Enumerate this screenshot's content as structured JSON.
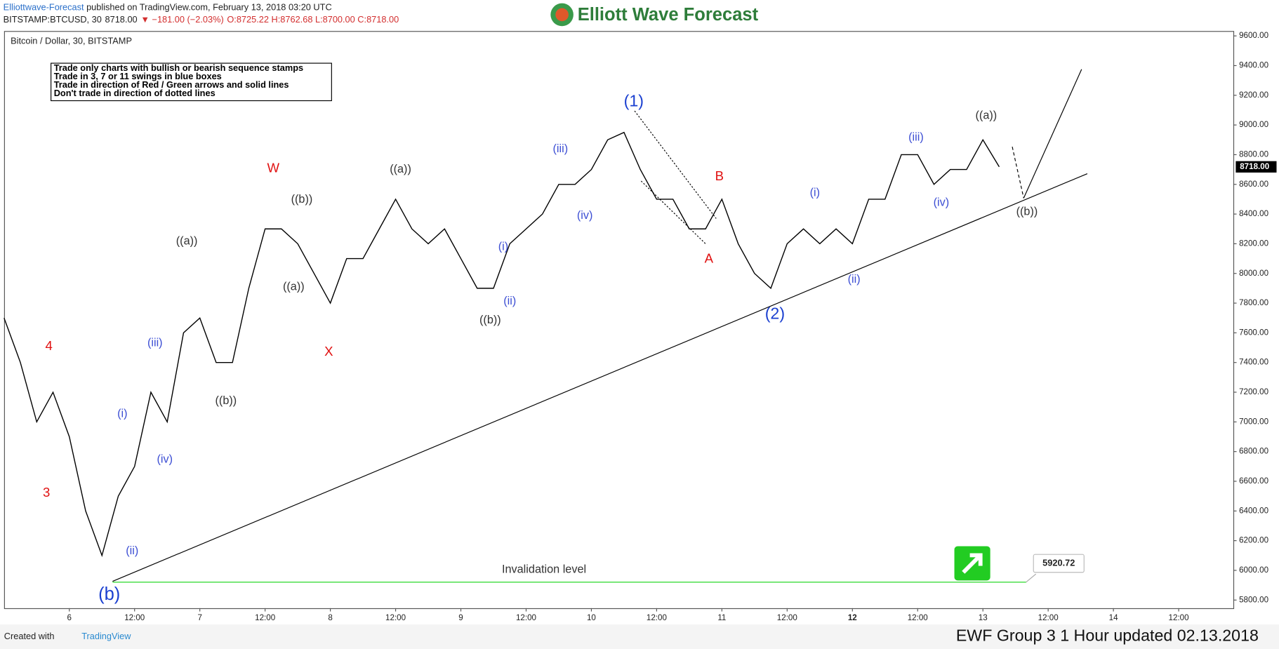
{
  "header": {
    "author": "Elliottwave-Forecast",
    "published": "published on TradingView.com, February 13, 2018 03:20 UTC",
    "symbol": "BITSTAMP:BTCUSD, 30",
    "price": "8718.00",
    "change": "▼ −181.00 (−2.03%)",
    "ohlc": "O:8725.22 H:8762.68 L:8700.00 C:8718.00",
    "logo": "Elliott Wave Forecast"
  },
  "notes": [
    "Trade only charts with bullish or bearish sequence stamps",
    "Trade in 3, 7 or 11 swings in blue boxes",
    "Trade in direction of Red / Green arrows and solid lines",
    "Don't trade in direction of dotted lines"
  ],
  "footer": {
    "created": "Created with",
    "brand": "TradingView",
    "caption": "EWF Group 3 1 Hour updated 02.13.2018"
  },
  "chart_data": {
    "type": "line",
    "title": "Bitcoin / Dollar, 30, BITSTAMP",
    "color": "#000000",
    "categories": [
      null,
      null,
      null,
      null,
      "6",
      null,
      null,
      null,
      "12:00",
      null,
      null,
      null,
      "7",
      null,
      null,
      null,
      "12:00",
      null,
      null,
      null,
      "8",
      null,
      null,
      null,
      "12:00",
      null,
      null,
      null,
      "9",
      null,
      null,
      null,
      "12:00",
      null,
      null,
      null,
      "10",
      null,
      null,
      null,
      "12:00",
      null,
      null,
      null,
      "11",
      null,
      null,
      null,
      "12:00",
      null,
      null,
      null,
      "12",
      null,
      null,
      null,
      "12:00",
      null,
      null,
      null,
      "13",
      null,
      null,
      null,
      "12:00",
      null,
      null,
      null,
      "14",
      null,
      null,
      null,
      "12:00",
      null,
      null
    ],
    "values": [
      7700,
      7400,
      7000,
      7200,
      6900,
      6400,
      6100,
      6500,
      6700,
      7200,
      7000,
      7600,
      7700,
      7400,
      7400,
      7900,
      8300,
      8300,
      8200,
      8000,
      7800,
      8100,
      8100,
      8300,
      8500,
      8300,
      8200,
      8300,
      8100,
      7900,
      7900,
      8200,
      8300,
      8400,
      8600,
      8600,
      8700,
      8900,
      8950,
      8700,
      8500,
      8500,
      8300,
      8300,
      8500,
      8200,
      8000,
      7900,
      8200,
      8300,
      8200,
      8300,
      8200,
      8500,
      8500,
      8800,
      8800,
      8600,
      8700,
      8700,
      8900,
      8718,
      null,
      null,
      null,
      null,
      null,
      null,
      null,
      null,
      null,
      null,
      null,
      null,
      null
    ],
    "ylim": [
      5745,
      9633
    ],
    "yticks": [
      {
        "value": 5800,
        "label": "5800.00"
      },
      {
        "value": 6000,
        "label": "6000.00"
      },
      {
        "value": 6200,
        "label": "6200.00"
      },
      {
        "value": 6400,
        "label": "6400.00"
      },
      {
        "value": 6600,
        "label": "6600.00"
      },
      {
        "value": 6800,
        "label": "6800.00"
      },
      {
        "value": 7000,
        "label": "7000.00"
      },
      {
        "value": 7200,
        "label": "7200.00"
      },
      {
        "value": 7400,
        "label": "7400.00"
      },
      {
        "value": 7600,
        "label": "7600.00"
      },
      {
        "value": 7800,
        "label": "7800.00"
      },
      {
        "value": 8000,
        "label": "8000.00"
      },
      {
        "value": 8200,
        "label": "8200.00"
      },
      {
        "value": 8400,
        "label": "8400.00"
      },
      {
        "value": 8600,
        "label": "8600.00"
      },
      {
        "value": 8800,
        "label": "8800.00"
      },
      {
        "value": 9000,
        "label": "9000.00"
      },
      {
        "value": 9200,
        "label": "9200.00"
      },
      {
        "value": 9400,
        "label": "9400.00"
      },
      {
        "value": 9600,
        "label": "9600.00"
      }
    ],
    "last_price": {
      "value": 8718,
      "label": "8718.00"
    },
    "invalidation": {
      "text": "Invalidation level",
      "value": 5920.72,
      "label": "5920.72"
    },
    "annotations": [
      "4",
      "3",
      "(b)",
      "(i)",
      "(ii)",
      "(iii)",
      "(iv)",
      "((a))",
      "((b))",
      "W",
      "((b))",
      "((a))",
      "X",
      "((a))",
      "((b))",
      "(i)",
      "(ii)",
      "(iii)",
      "(iv)",
      "(1)",
      "B",
      "A",
      "(2)",
      "(i)",
      "(ii)",
      "(iii)",
      "(iv)",
      "((a))",
      "((b))"
    ]
  }
}
